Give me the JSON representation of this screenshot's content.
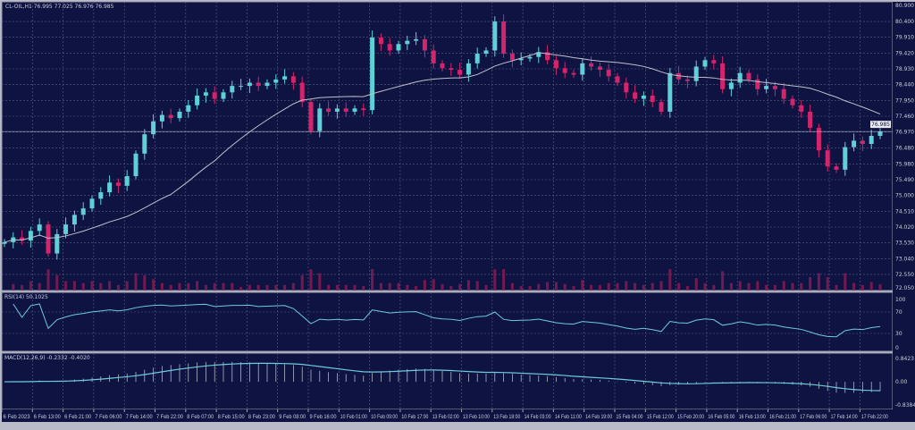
{
  "header": {
    "symbol_info": "CL-OIL,H1  76.995 77.025 76.976 76.985"
  },
  "colors": {
    "background": "#0f1342",
    "grid": "#5a5f80",
    "bull": "#5fd0d6",
    "bear": "#d2256b",
    "ma": "#bfc1cc",
    "rsi": "#6ccbdc",
    "macd": "#6ccbdc",
    "hist": "#c8cad4"
  },
  "chart_data": [
    {
      "type": "candlestick",
      "title": "CL-OIL,H1",
      "ylim": [
        72.05,
        80.9
      ],
      "y_ticks": [
        "80.900",
        "80.400",
        "79.910",
        "79.420",
        "78.930",
        "78.440",
        "77.950",
        "77.460",
        "76.970",
        "76.480",
        "75.980",
        "75.490",
        "75.000",
        "74.510",
        "74.020",
        "73.530",
        "73.040",
        "72.550",
        "72.050"
      ],
      "current_price": "76.985",
      "moving_average": {
        "period": 20
      },
      "closes": [
        73.55,
        73.7,
        73.6,
        73.9,
        74.1,
        73.2,
        73.8,
        74.1,
        74.4,
        74.6,
        74.9,
        75.1,
        75.4,
        75.3,
        75.6,
        76.3,
        76.9,
        77.3,
        77.5,
        77.4,
        77.6,
        77.8,
        78.1,
        78.2,
        78.0,
        78.2,
        78.4,
        78.4,
        78.5,
        78.4,
        78.5,
        78.6,
        78.7,
        78.5,
        77.9,
        77.0,
        77.7,
        77.6,
        77.7,
        77.6,
        77.7,
        77.65,
        79.9,
        79.7,
        79.5,
        79.7,
        79.8,
        79.85,
        79.5,
        79.1,
        78.95,
        78.9,
        78.75,
        79.1,
        79.4,
        79.5,
        80.4,
        79.4,
        79.2,
        79.25,
        79.3,
        79.45,
        79.2,
        78.95,
        78.8,
        78.75,
        79.1,
        79.0,
        78.9,
        78.7,
        78.5,
        78.2,
        78.0,
        78.1,
        77.9,
        77.6,
        78.8,
        78.6,
        78.55,
        79.0,
        79.2,
        79.1,
        78.3,
        78.5,
        78.8,
        78.6,
        78.3,
        78.4,
        78.3,
        78.0,
        77.8,
        77.6,
        77.1,
        76.4,
        75.9,
        75.8,
        76.5,
        76.7,
        76.6,
        76.85,
        76.985
      ],
      "x_ticks": [
        "6 Feb 2023",
        "6 Feb 13:00",
        "6 Feb 21:00",
        "7 Feb 06:00",
        "7 Feb 14:00",
        "7 Feb 22:00",
        "8 Feb 07:00",
        "8 Feb 15:00",
        "8 Feb 23:00",
        "9 Feb 08:00",
        "9 Feb 16:00",
        "10 Feb 01:00",
        "10 Feb 09:00",
        "10 Feb 17:00",
        "13 Feb 02:00",
        "13 Feb 10:00",
        "13 Feb 18:00",
        "14 Feb 03:00",
        "14 Feb 11:00",
        "14 Feb 19:00",
        "15 Feb 04:00",
        "15 Feb 12:00",
        "15 Feb 20:00",
        "16 Feb 05:00",
        "16 Feb 13:00",
        "16 Feb 21:00",
        "17 Feb 06:00",
        "17 Feb 14:00",
        "17 Feb 22:00"
      ]
    },
    {
      "type": "line",
      "title": "RSI(14) 50.1025",
      "period": 14,
      "ylim": [
        0,
        100
      ],
      "y_ticks": [
        "100",
        "70",
        "30",
        "0"
      ]
    },
    {
      "type": "line",
      "title": "MACD(12,26,9) -0.2332 -0.4020",
      "params": [
        12,
        26,
        9
      ],
      "ylim": [
        -0.8384,
        0.8423
      ],
      "y_ticks": [
        "0.8423",
        "0.00",
        "-0.8384"
      ]
    }
  ]
}
